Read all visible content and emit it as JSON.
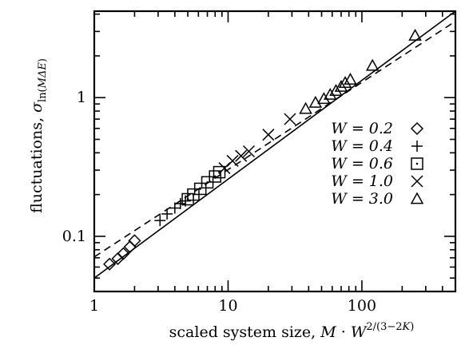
{
  "chart_data": {
    "type": "scatter",
    "title": "",
    "xlabel": "scaled system size, M · W^{2/(3−2K)}",
    "ylabel": "fluctuations, σ_ln(MΔE)",
    "xscale": "log",
    "yscale": "log",
    "xlim": [
      1,
      500
    ],
    "ylim": [
      0.04,
      4.2
    ],
    "x_ticks": [
      {
        "value": 1,
        "label": "1"
      },
      {
        "value": 10,
        "label": "10"
      },
      {
        "value": 100,
        "label": "100"
      }
    ],
    "y_ticks": [
      {
        "value": 0.1,
        "label": "0.1"
      },
      {
        "value": 1,
        "label": "1"
      }
    ],
    "legend_position": "right",
    "series": [
      {
        "name": "W = 0.2",
        "marker": "diamond",
        "points": [
          [
            1.3,
            0.063
          ],
          [
            1.5,
            0.069
          ],
          [
            1.65,
            0.075
          ],
          [
            1.85,
            0.084
          ],
          [
            2.0,
            0.093
          ]
        ]
      },
      {
        "name": "W = 0.4",
        "marker": "plus",
        "points": [
          [
            3.1,
            0.13
          ],
          [
            3.5,
            0.145
          ],
          [
            4.0,
            0.16
          ],
          [
            4.4,
            0.172
          ],
          [
            4.8,
            0.18
          ]
        ]
      },
      {
        "name": "W = 0.6",
        "marker": "square",
        "points": [
          [
            5.0,
            0.185
          ],
          [
            5.5,
            0.2
          ],
          [
            6.2,
            0.22
          ],
          [
            7.0,
            0.245
          ],
          [
            8.0,
            0.27
          ],
          [
            8.6,
            0.29
          ]
        ]
      },
      {
        "name": "W = 1.0",
        "marker": "cross",
        "points": [
          [
            9.4,
            0.31
          ],
          [
            10.8,
            0.35
          ],
          [
            12.5,
            0.38
          ],
          [
            14.3,
            0.41
          ],
          [
            20.0,
            0.54
          ],
          [
            29.0,
            0.7
          ]
        ]
      },
      {
        "name": "W = 3.0",
        "marker": "triangle",
        "points": [
          [
            38,
            0.83
          ],
          [
            45,
            0.92
          ],
          [
            52,
            0.98
          ],
          [
            58,
            1.05
          ],
          [
            64,
            1.12
          ],
          [
            70,
            1.2
          ],
          [
            75,
            1.28
          ],
          [
            82,
            1.35
          ],
          [
            120,
            1.7
          ],
          [
            250,
            2.8
          ]
        ]
      }
    ],
    "lines": [
      {
        "style": "solid",
        "points": [
          [
            1,
            0.05
          ],
          [
            500,
            4.2
          ]
        ]
      },
      {
        "style": "dashed",
        "points": [
          [
            1,
            0.071
          ],
          [
            500,
            3.55
          ]
        ]
      }
    ]
  }
}
